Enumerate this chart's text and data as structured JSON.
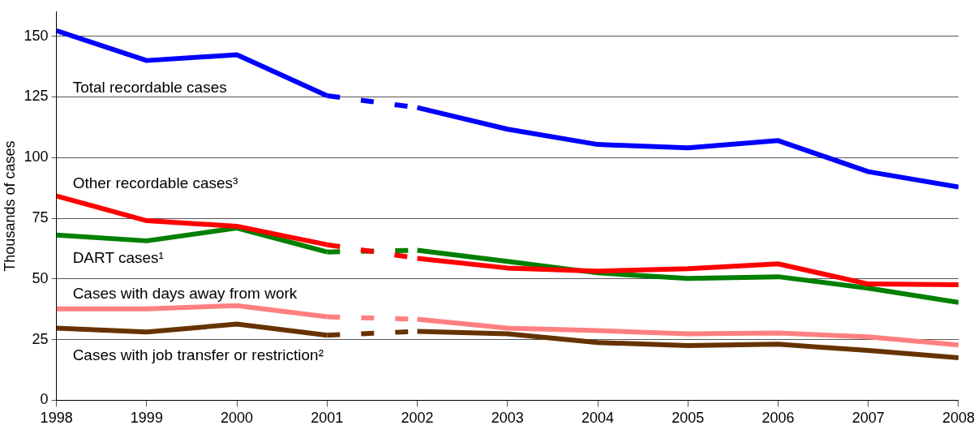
{
  "chart_data": {
    "type": "line",
    "ylabel": "Thousands of cases",
    "xlim": [
      1998,
      2008
    ],
    "xticks": [
      1998,
      1999,
      2000,
      2001,
      2002,
      2003,
      2004,
      2005,
      2006,
      2007,
      2008
    ],
    "ylim": [
      0,
      160
    ],
    "yticks": [
      0,
      25,
      50,
      75,
      100,
      125,
      150
    ],
    "grid": "y",
    "legend": false,
    "marker": "none",
    "series": [
      {
        "name": "Total recordable cases",
        "color": "#0000ff",
        "line_style": "solid",
        "x": [
          1998,
          1999,
          2000,
          2001
        ],
        "values": [
          152.3,
          140,
          142.4,
          125.5
        ]
      },
      {
        "color": "#0000ff",
        "line_style": "dashed",
        "x": [
          2001,
          2002
        ],
        "values": [
          125.5,
          120.6
        ]
      },
      {
        "color": "#0000ff",
        "line_style": "solid",
        "x": [
          2002,
          2003,
          2004,
          2005,
          2006,
          2007,
          2008
        ],
        "values": [
          120.6,
          111.7,
          105.4,
          104,
          107,
          94.2,
          87.9
        ]
      },
      {
        "name": "Other recordable cases³",
        "color": "#ff0000",
        "line_style": "solid",
        "x": [
          1998,
          1999,
          2000,
          2001
        ],
        "values": [
          84.2,
          74,
          71.7,
          64.1
        ]
      },
      {
        "color": "#ff0000",
        "line_style": "dashed",
        "x": [
          2001,
          2002
        ],
        "values": [
          64.1,
          58.5
        ]
      },
      {
        "color": "#ff0000",
        "line_style": "solid",
        "x": [
          2002,
          2003,
          2004,
          2005,
          2006,
          2007,
          2008
        ],
        "values": [
          58.5,
          54.5,
          53.2,
          54.2,
          56.2,
          47.9,
          47.6
        ]
      },
      {
        "name": "DART cases¹",
        "color": "#008000",
        "line_style": "solid",
        "x": [
          1998,
          1999,
          2000,
          2001
        ],
        "values": [
          68.1,
          65.7,
          71,
          61.1
        ]
      },
      {
        "color": "#008000",
        "line_style": "dashed",
        "x": [
          2001,
          2002
        ],
        "values": [
          61.1,
          61.8
        ]
      },
      {
        "color": "#008000",
        "line_style": "solid",
        "x": [
          2002,
          2003,
          2004,
          2005,
          2006,
          2007,
          2008
        ],
        "values": [
          61.8,
          57.2,
          52.5,
          50.2,
          50.9,
          46.2,
          40.3
        ]
      },
      {
        "name": "Cases with days away from work",
        "color": "#ff8080",
        "line_style": "solid",
        "x": [
          1998,
          1999,
          2000,
          2001
        ],
        "values": [
          37.7,
          37.7,
          39,
          34.4
        ]
      },
      {
        "color": "#ff8080",
        "line_style": "dashed",
        "x": [
          2001,
          2002
        ],
        "values": [
          34.4,
          33.4
        ]
      },
      {
        "color": "#ff8080",
        "line_style": "solid",
        "x": [
          2002,
          2003,
          2004,
          2005,
          2006,
          2007,
          2008
        ],
        "values": [
          33.4,
          29.7,
          28.7,
          27.4,
          27.7,
          26.1,
          22.8
        ]
      },
      {
        "name": "Cases with job transfer or restriction²",
        "color": "#663300",
        "line_style": "solid",
        "x": [
          1998,
          1999,
          2000,
          2001
        ],
        "values": [
          29.7,
          28.1,
          31.4,
          26.8
        ]
      },
      {
        "color": "#663300",
        "line_style": "dashed",
        "x": [
          2001,
          2002
        ],
        "values": [
          26.8,
          28.4
        ]
      },
      {
        "color": "#663300",
        "line_style": "solid",
        "x": [
          2002,
          2003,
          2004,
          2005,
          2006,
          2007,
          2008
        ],
        "values": [
          28.4,
          27.4,
          23.8,
          22.5,
          23.1,
          20.5,
          17.5
        ]
      }
    ]
  }
}
